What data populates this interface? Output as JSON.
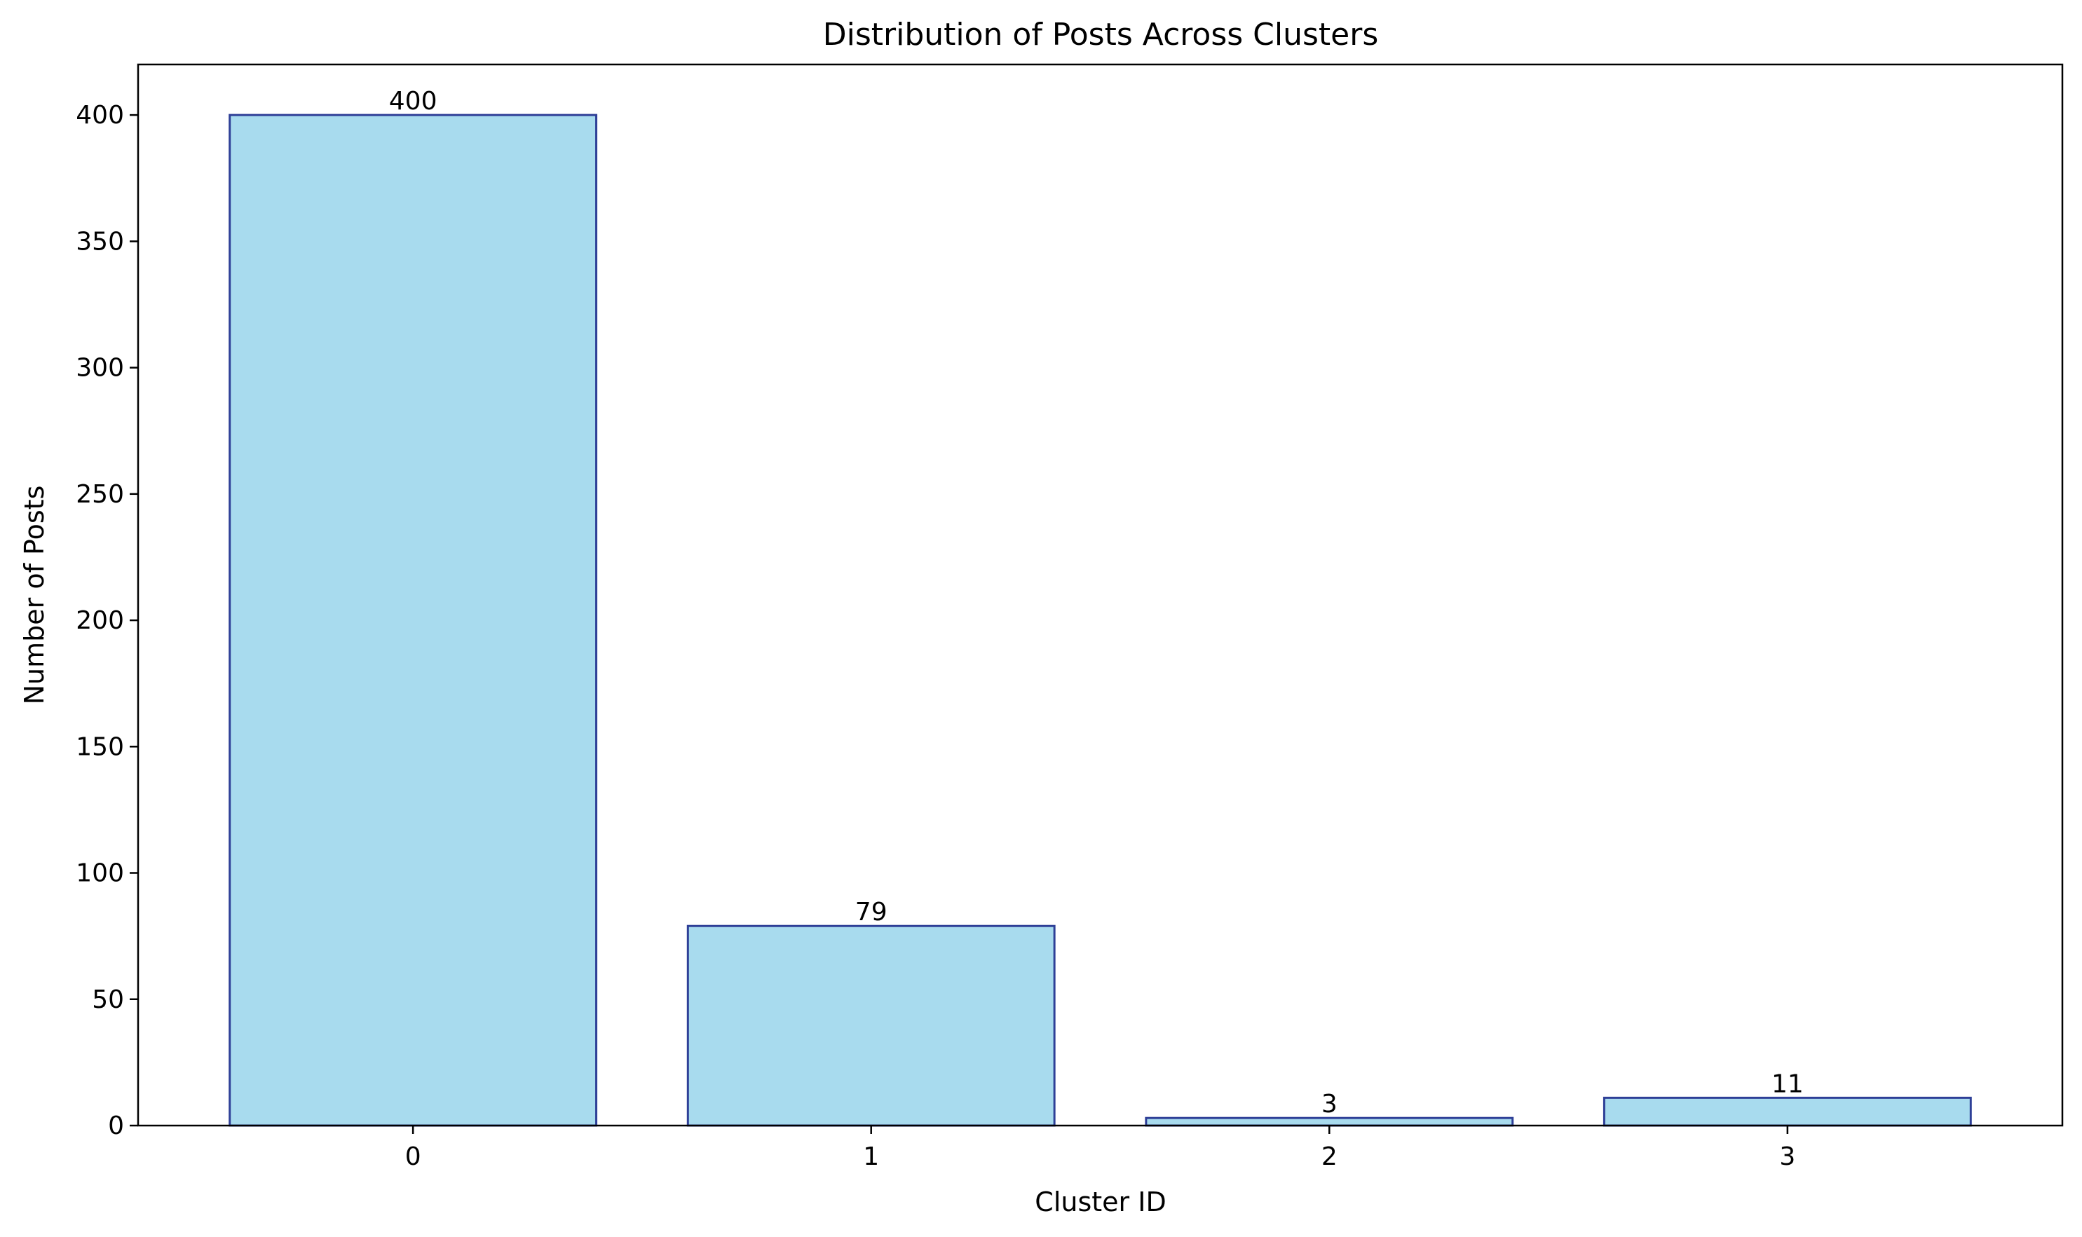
{
  "chart_data": {
    "type": "bar",
    "title": "Distribution of Posts Across Clusters",
    "xlabel": "Cluster ID",
    "ylabel": "Number of Posts",
    "categories": [
      "0",
      "1",
      "2",
      "3"
    ],
    "values": [
      400,
      79,
      3,
      11
    ],
    "data_labels": [
      "400",
      "79",
      "3",
      "11"
    ],
    "ylim": [
      0,
      420
    ],
    "yticks": [
      0,
      50,
      100,
      150,
      200,
      250,
      300,
      350,
      400
    ],
    "grid": false,
    "legend": "none",
    "colors": {
      "bar_fill": "#a8dbee",
      "bar_edge": "#2e3f97",
      "axis": "#000000",
      "text": "#000000"
    }
  }
}
